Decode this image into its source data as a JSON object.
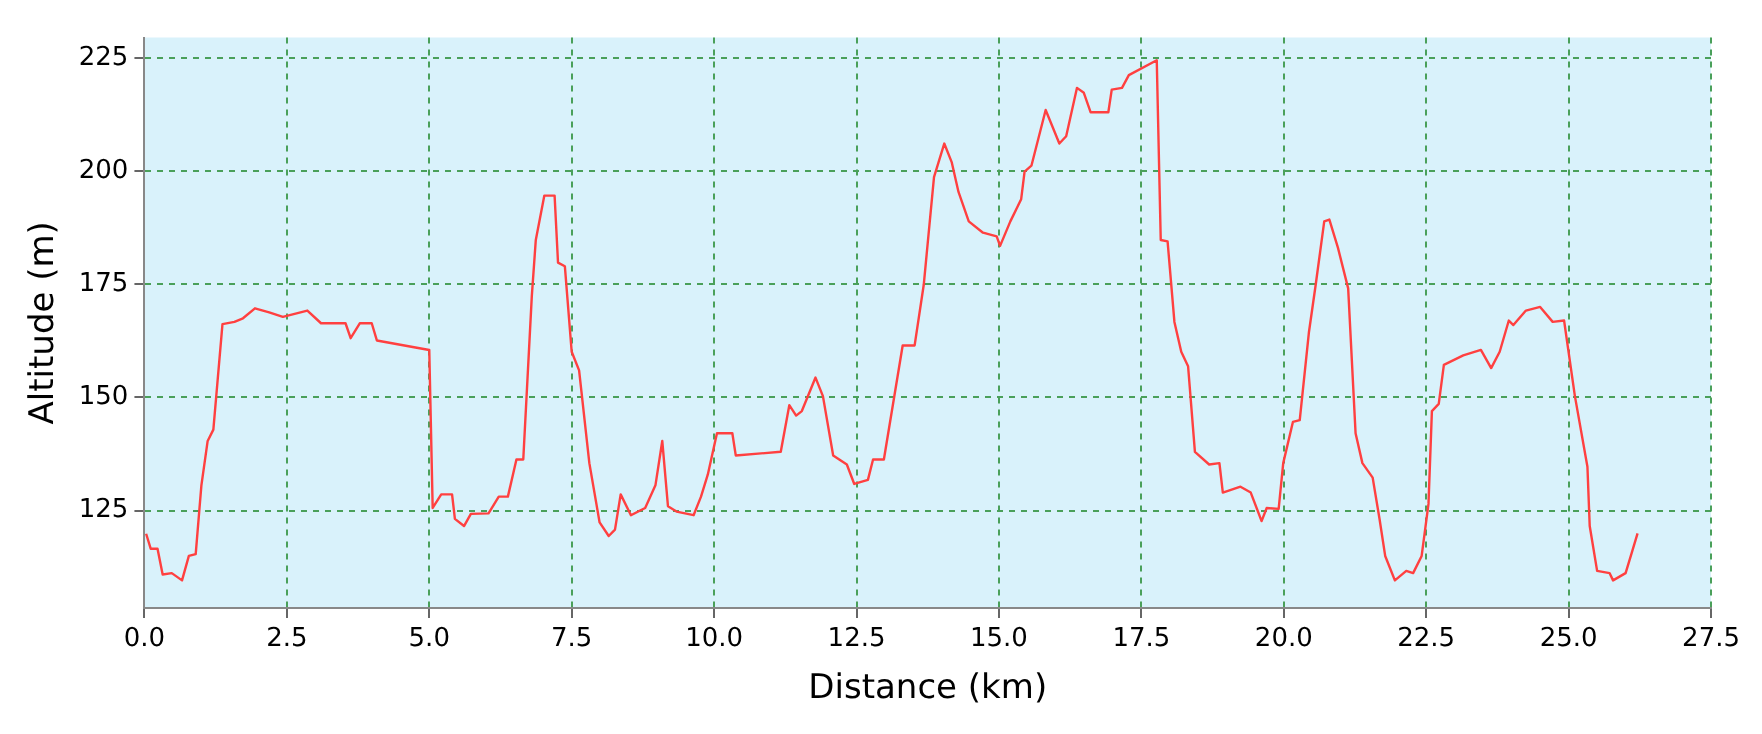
{
  "chart_data": {
    "type": "line",
    "xlabel": "Distance (km)",
    "ylabel": "Altitude (m)",
    "xlim": [
      0,
      27.5
    ],
    "ylim": [
      103.5,
      229.5
    ],
    "xticks": [
      {
        "value": 0,
        "label": "0.0"
      },
      {
        "value": 2.5,
        "label": "2.5"
      },
      {
        "value": 5,
        "label": "5.0"
      },
      {
        "value": 7.5,
        "label": "7.5"
      },
      {
        "value": 10,
        "label": "10.0"
      },
      {
        "value": 12.5,
        "label": "12.5"
      },
      {
        "value": 15,
        "label": "15.0"
      },
      {
        "value": 17.5,
        "label": "17.5"
      },
      {
        "value": 20,
        "label": "20.0"
      },
      {
        "value": 22.5,
        "label": "22.5"
      },
      {
        "value": 25,
        "label": "25.0"
      },
      {
        "value": 27.5,
        "label": "27.5"
      }
    ],
    "yticks": [
      125,
      150,
      175,
      200,
      225
    ],
    "grid": true,
    "legend": false,
    "marker": "none",
    "line_style": "solid",
    "series": [
      {
        "color": "#ff4040",
        "x": [
          0.03,
          0.11,
          0.23,
          0.32,
          0.48,
          0.66,
          0.78,
          0.9,
          1.0,
          1.11,
          1.21,
          1.37,
          1.58,
          1.73,
          1.94,
          2.19,
          2.43,
          2.86,
          3.1,
          3.53,
          3.62,
          3.78,
          3.99,
          4.08,
          5.0,
          5.06,
          5.21,
          5.4,
          5.45,
          5.61,
          5.73,
          6.04,
          6.22,
          6.38,
          6.53,
          6.65,
          6.8,
          6.87,
          7.02,
          7.2,
          7.26,
          7.38,
          7.5,
          7.63,
          7.81,
          7.99,
          8.15,
          8.26,
          8.36,
          8.54,
          8.79,
          8.97,
          9.09,
          9.19,
          9.34,
          9.64,
          9.77,
          9.89,
          10.05,
          10.32,
          10.38,
          11.17,
          11.32,
          11.44,
          11.54,
          11.78,
          11.91,
          12.09,
          12.33,
          12.46,
          12.7,
          12.79,
          12.98,
          13.31,
          13.52,
          13.68,
          13.86,
          14.04,
          14.17,
          14.29,
          14.47,
          14.72,
          14.96,
          15.02,
          15.2,
          15.39,
          15.45,
          15.57,
          15.82,
          16.06,
          16.18,
          16.37,
          16.49,
          16.61,
          16.92,
          16.98,
          17.16,
          17.28,
          17.77,
          17.84,
          17.96,
          18.08,
          18.2,
          18.32,
          18.44,
          18.69,
          18.87,
          18.93,
          19.24,
          19.42,
          19.61,
          19.7,
          19.91,
          19.99,
          20.16,
          20.28,
          20.44,
          20.56,
          20.71,
          20.8,
          20.95,
          21.13,
          21.26,
          21.38,
          21.56,
          21.68,
          21.78,
          21.95,
          22.15,
          22.27,
          22.42,
          22.54,
          22.6,
          22.72,
          22.81,
          23.15,
          23.46,
          23.64,
          23.79,
          23.95,
          24.03,
          24.25,
          24.5,
          24.72,
          24.92,
          25.11,
          25.33,
          25.37,
          25.5,
          25.72,
          25.78,
          26.0,
          26.11,
          26.21
        ],
        "values": [
          119.9,
          116.6,
          116.6,
          110.9,
          111.2,
          109.6,
          115,
          115.4,
          130.6,
          140.4,
          142.9,
          166.2,
          166.7,
          167.5,
          169.7,
          168.8,
          167.8,
          169.2,
          166.4,
          166.4,
          163.1,
          166.4,
          166.4,
          162.6,
          160.5,
          125.6,
          128.6,
          128.6,
          123.2,
          121.6,
          124.3,
          124.4,
          128.1,
          128.1,
          136.3,
          136.3,
          172.4,
          184.8,
          194.6,
          194.6,
          179.8,
          179,
          160.1,
          156,
          135.5,
          122.4,
          119.4,
          120.8,
          128.6,
          124,
          125.6,
          130.6,
          140.4,
          126,
          124.8,
          124,
          128.1,
          133,
          142.1,
          142.1,
          137.2,
          138,
          148.3,
          146,
          147,
          154.4,
          150.3,
          137.2,
          135.2,
          130.9,
          131.8,
          136.3,
          136.3,
          161.5,
          161.5,
          174.9,
          198.7,
          206.1,
          202,
          195.4,
          188.9,
          186.4,
          185.6,
          183.5,
          188.9,
          193.8,
          199.9,
          201.2,
          213.5,
          206.1,
          207.7,
          218.4,
          217.3,
          213,
          213,
          218,
          218.4,
          221.2,
          224.5,
          184.8,
          184.5,
          166.7,
          160.1,
          156.9,
          138,
          135.2,
          135.5,
          129,
          130.3,
          129,
          122.7,
          125.6,
          125.4,
          135.5,
          144.6,
          145,
          164.3,
          174.9,
          188.9,
          189.3,
          183.1,
          174.1,
          142.1,
          135.5,
          132.3,
          123.2,
          115,
          109.6,
          111.7,
          111.2,
          115,
          126.5,
          147,
          148.6,
          157.2,
          159.3,
          160.5,
          156.5,
          160.1,
          167,
          166,
          169.2,
          170,
          166.7,
          167,
          150.3,
          134.7,
          121.6,
          111.7,
          111.2,
          109.6,
          111.2,
          115.8,
          120
        ]
      }
    ]
  }
}
